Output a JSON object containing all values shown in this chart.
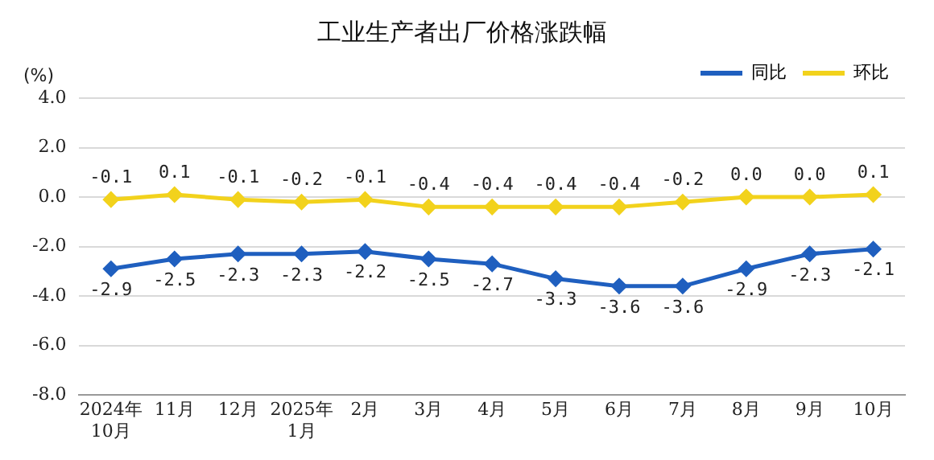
{
  "chart_data": {
    "type": "line",
    "title": "工业生产者出厂价格涨跌幅",
    "ylabel": "(%)",
    "categories": [
      "2024年\n10月",
      "11月",
      "12月",
      "2025年\n1月",
      "2月",
      "3月",
      "4月",
      "5月",
      "6月",
      "7月",
      "8月",
      "9月",
      "10月"
    ],
    "series": [
      {
        "name": "同比",
        "color": "#1f5fbf",
        "values": [
          -2.9,
          -2.5,
          -2.3,
          -2.3,
          -2.2,
          -2.5,
          -2.7,
          -3.3,
          -3.6,
          -3.6,
          -2.9,
          -2.3,
          -2.1
        ],
        "value_labels": [
          "-2.9",
          "-2.5",
          "-2.3",
          "-2.3",
          "-2.2",
          "-2.5",
          "-2.7",
          "-3.3",
          "-3.6",
          "-3.6",
          "-2.9",
          "-2.3",
          "-2.1"
        ]
      },
      {
        "name": "环比",
        "color": "#f2d21c",
        "values": [
          -0.1,
          0.1,
          -0.1,
          -0.2,
          -0.1,
          -0.4,
          -0.4,
          -0.4,
          -0.4,
          -0.2,
          0.0,
          0.0,
          0.1
        ],
        "value_labels": [
          "-0.1",
          "0.1",
          "-0.1",
          "-0.2",
          "-0.1",
          "-0.4",
          "-0.4",
          "-0.4",
          "-0.4",
          "-0.2",
          "0.0",
          "0.0",
          "0.1"
        ]
      }
    ],
    "ylim": [
      -8,
      4
    ],
    "yticks": [
      {
        "value": -8,
        "label": "-8.0"
      },
      {
        "value": -6,
        "label": "-6.0"
      },
      {
        "value": -4,
        "label": "-4.0"
      },
      {
        "value": -2,
        "label": "-2.0"
      },
      {
        "value": 0,
        "label": "0.0"
      },
      {
        "value": 2,
        "label": "2.0"
      },
      {
        "value": 4,
        "label": "4.0"
      }
    ],
    "grid": "y",
    "legend": "top right",
    "marker": "diamond",
    "line_style": "solid"
  }
}
